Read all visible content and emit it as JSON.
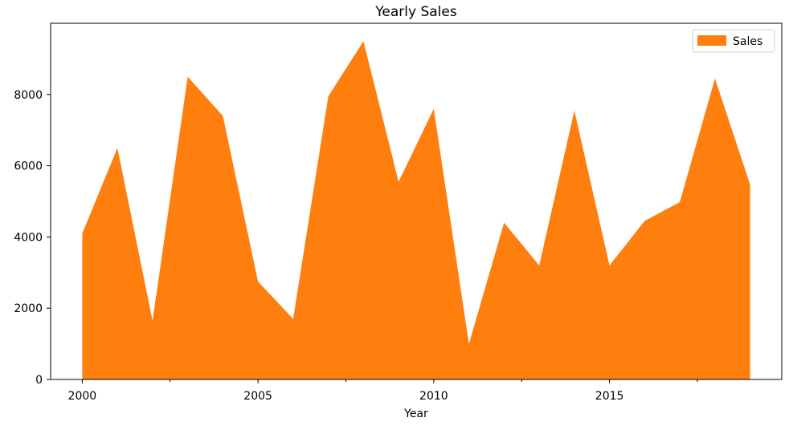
{
  "chart_data": {
    "type": "area",
    "title": "Yearly Sales",
    "xlabel": "Year",
    "ylabel": "",
    "x": [
      2000,
      2001,
      2002,
      2003,
      2004,
      2005,
      2006,
      2007,
      2008,
      2009,
      2010,
      2011,
      2012,
      2013,
      2014,
      2015,
      2016,
      2017,
      2018,
      2019
    ],
    "series": [
      {
        "name": "Sales",
        "color": "#ff7f0e",
        "values": [
          4100,
          6500,
          1650,
          8500,
          7400,
          2750,
          1700,
          7950,
          9500,
          5550,
          7600,
          1000,
          4400,
          3200,
          7550,
          3200,
          4450,
          4980,
          8450,
          5470
        ]
      }
    ],
    "xlim": [
      1999.1,
      2019.9
    ],
    "ylim": [
      0,
      10000
    ],
    "xticks": [
      2000,
      2005,
      2010,
      2015
    ],
    "xticks_minor": [
      2002.5,
      2007.5,
      2012.5,
      2017.5
    ],
    "yticks": [
      0,
      2000,
      4000,
      6000,
      8000
    ],
    "legend": "top-right",
    "grid": false
  }
}
